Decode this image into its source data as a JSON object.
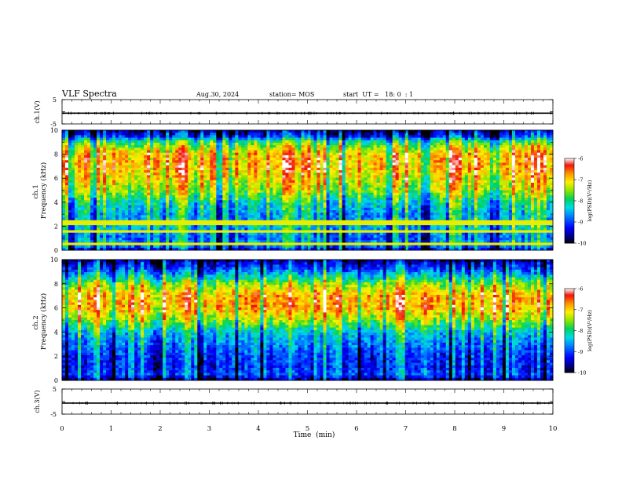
{
  "header": {
    "title": "VLF Spectra",
    "date": "Aug.30, 2024",
    "station": "station= MOS",
    "start": "start  UT =   18: 0  : 1"
  },
  "chart_data": [
    {
      "type": "line",
      "name": "ch1-waveform",
      "ylabel": "ch.1(V)",
      "ylim": [
        -5,
        5
      ],
      "yticks": [
        "5",
        "-5"
      ],
      "x": [
        0,
        10
      ],
      "y": [
        -0.6,
        -0.6
      ]
    },
    {
      "type": "heatmap",
      "name": "ch1-spectrogram",
      "ylabel": "ch.1\nFrequency (kHz)",
      "ylim": [
        0,
        10
      ],
      "yticks": [
        "0",
        "2",
        "4",
        "6",
        "8",
        "10"
      ],
      "xlim": [
        0,
        10
      ],
      "x_unit": "min",
      "colorbar": {
        "label": "log(PSD)(V²/Hz)",
        "range": [
          -10,
          -6
        ],
        "ticks": [
          "-6",
          "-7",
          "-8",
          "-9",
          "-10"
        ]
      },
      "spectral_profile_kHz": [
        [
          0,
          -9.6
        ],
        [
          0.5,
          -8.6
        ],
        [
          1,
          -9.0
        ],
        [
          2,
          -8.5
        ],
        [
          3,
          -8.7
        ],
        [
          4,
          -8.3
        ],
        [
          5,
          -7.6
        ],
        [
          6,
          -7.3
        ],
        [
          7,
          -7.0
        ],
        [
          8,
          -7.1
        ],
        [
          9,
          -8.0
        ],
        [
          9.5,
          -9.3
        ],
        [
          10,
          -9.9
        ]
      ]
    },
    {
      "type": "heatmap",
      "name": "ch2-spectrogram",
      "ylabel": "ch.2\nFrequency (kHz)",
      "ylim": [
        0,
        10
      ],
      "yticks": [
        "0",
        "2",
        "4",
        "6",
        "8",
        "10"
      ],
      "xlim": [
        0,
        10
      ],
      "x_unit": "min",
      "colorbar": {
        "label": "log(PSD)(V²/Hz)",
        "range": [
          -10,
          -6
        ],
        "ticks": [
          "-6",
          "-7",
          "-8",
          "-9",
          "-10"
        ]
      },
      "spectral_profile_kHz": [
        [
          0,
          -9.8
        ],
        [
          0.5,
          -9.0
        ],
        [
          1,
          -9.2
        ],
        [
          2,
          -9.1
        ],
        [
          3,
          -8.8
        ],
        [
          4,
          -8.4
        ],
        [
          5,
          -7.5
        ],
        [
          6,
          -6.9
        ],
        [
          7,
          -6.9
        ],
        [
          8,
          -7.6
        ],
        [
          9,
          -8.8
        ],
        [
          9.5,
          -9.3
        ],
        [
          10,
          -9.8
        ]
      ]
    },
    {
      "type": "line",
      "name": "ch3-waveform",
      "ylabel": "ch.3(V)",
      "ylim": [
        -5,
        5
      ],
      "yticks": [
        "5",
        "-5"
      ],
      "x": [
        0,
        10
      ],
      "y": [
        -0.6,
        -0.6
      ]
    }
  ],
  "xaxis": {
    "label": "Time  (min)",
    "ticks": [
      "0",
      "1",
      "2",
      "3",
      "4",
      "5",
      "6",
      "7",
      "8",
      "9",
      "10"
    ]
  }
}
